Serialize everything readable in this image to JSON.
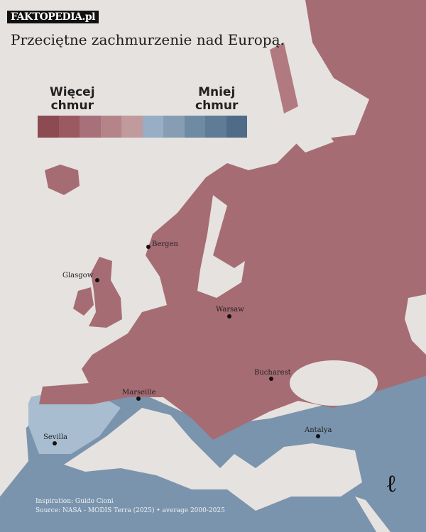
{
  "brand": "FAKTOPEDIA.pl",
  "title": "Przeciętne zachmurzenie nad Europą.",
  "legend": {
    "left_label_1": "Więcej",
    "left_label_2": "chmur",
    "right_label_1": "Mniej",
    "right_label_2": "chmur",
    "colors": [
      "#8c4a52",
      "#9b5a60",
      "#a8707a",
      "#b58489",
      "#c19a9e",
      "#97aec4",
      "#869db3",
      "#6f8ba4",
      "#5f7b96",
      "#4f6b88"
    ]
  },
  "cities": {
    "bergen": "Bergen",
    "glasgow": "Glasgow",
    "warsaw": "Warsaw",
    "bucharest": "Bucharest",
    "marseille": "Marseille",
    "sevilla": "Sevilla",
    "antalya": "Antalya"
  },
  "credits": {
    "inspiration": "Inspiration: Guido Cioni",
    "source": "Source: NASA - MODIS Terra (2025)  • average 2000-2025"
  },
  "colors": {
    "sea": "#e6e2df",
    "cloudy_land": "#a66c73",
    "clear_land": "#6f8ba4"
  }
}
